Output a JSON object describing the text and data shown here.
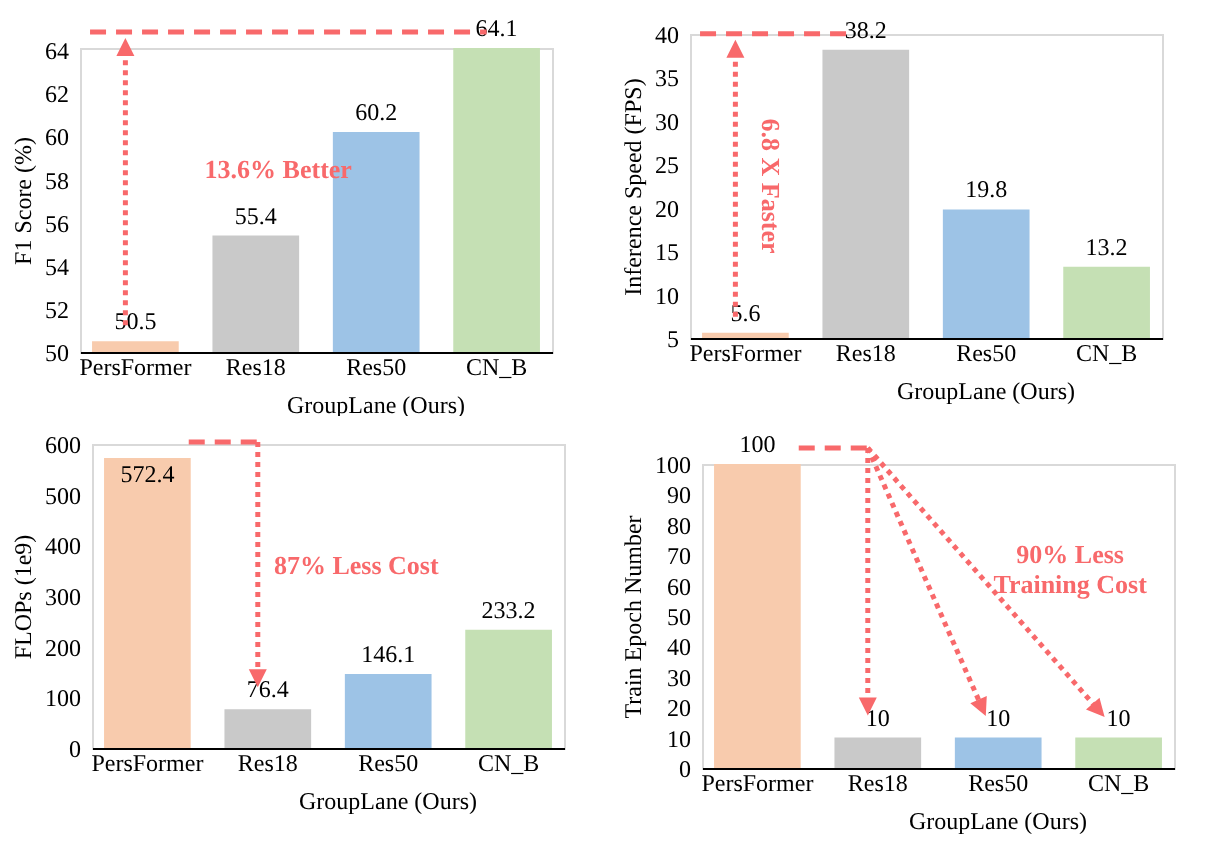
{
  "chart_data": [
    {
      "type": "bar",
      "categories": [
        "PersFormer",
        "Res18",
        "Res50",
        "CN_B"
      ],
      "values": [
        50.5,
        55.4,
        60.2,
        64.1
      ],
      "colors": [
        "#f8cbad",
        "#c9c9c9",
        "#9dc3e6",
        "#c5e0b4"
      ],
      "ylabel": "F1 Score (%)",
      "xlabel": "GroupLane (Ours)",
      "ylim": [
        50,
        64.1
      ],
      "yticks": [
        50,
        52,
        54,
        56,
        58,
        60,
        62,
        64
      ],
      "data_labels": true,
      "annotations": [
        "13.6% Better"
      ]
    },
    {
      "type": "bar",
      "categories": [
        "PersFormer",
        "Res18",
        "Res50",
        "CN_B"
      ],
      "values": [
        5.6,
        38.2,
        19.8,
        13.2
      ],
      "colors": [
        "#f8cbad",
        "#c9c9c9",
        "#9dc3e6",
        "#c5e0b4"
      ],
      "ylabel": "Inference Speed (FPS)",
      "xlabel": "GroupLane (Ours)",
      "ylim": [
        5,
        40
      ],
      "yticks": [
        5,
        10,
        15,
        20,
        25,
        30,
        35,
        40
      ],
      "data_labels": true,
      "annotations": [
        "6.8 X Faster"
      ]
    },
    {
      "type": "bar",
      "categories": [
        "PersFormer",
        "Res18",
        "Res50",
        "CN_B"
      ],
      "values": [
        572.4,
        76.4,
        146.1,
        233.2
      ],
      "colors": [
        "#f8cbad",
        "#c9c9c9",
        "#9dc3e6",
        "#c5e0b4"
      ],
      "ylabel": "FLOPs (1e9)",
      "xlabel": "GroupLane (Ours)",
      "ylim": [
        0,
        600
      ],
      "yticks": [
        0,
        100,
        200,
        300,
        400,
        500,
        600
      ],
      "data_labels": true,
      "annotations": [
        "87% Less Cost"
      ]
    },
    {
      "type": "bar",
      "categories": [
        "PersFormer",
        "Res18",
        "Res50",
        "CN_B"
      ],
      "values": [
        100,
        10,
        10,
        10
      ],
      "colors": [
        "#f8cbad",
        "#c9c9c9",
        "#9dc3e6",
        "#c5e0b4"
      ],
      "ylabel": "Train Epoch Number",
      "xlabel": "GroupLane (Ours)",
      "ylim": [
        0,
        100
      ],
      "yticks": [
        0,
        10,
        20,
        30,
        40,
        50,
        60,
        70,
        80,
        90,
        100
      ],
      "data_labels": true,
      "annotations": [
        "90% Less\nTraining Cost"
      ]
    }
  ]
}
